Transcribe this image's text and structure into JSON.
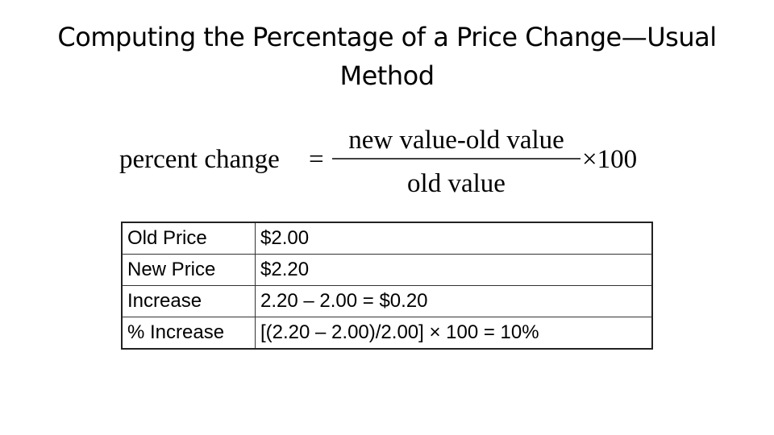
{
  "header": {
    "title": "Computing the Percentage of a Price Change—Usual Method"
  },
  "formula": {
    "lhs": "percent change",
    "equals": "=",
    "numerator": "new value-old value",
    "denominator": "old value",
    "multiplier": "×100"
  },
  "table": {
    "rows": [
      [
        "Old Price",
        "$2.00"
      ],
      [
        "New Price",
        "$2.20"
      ],
      [
        "Increase",
        "2.20 – 2.00 = $0.20"
      ],
      [
        "% Increase",
        "[(2.20 – 2.00)/2.00] × 100 = 10%"
      ]
    ]
  }
}
